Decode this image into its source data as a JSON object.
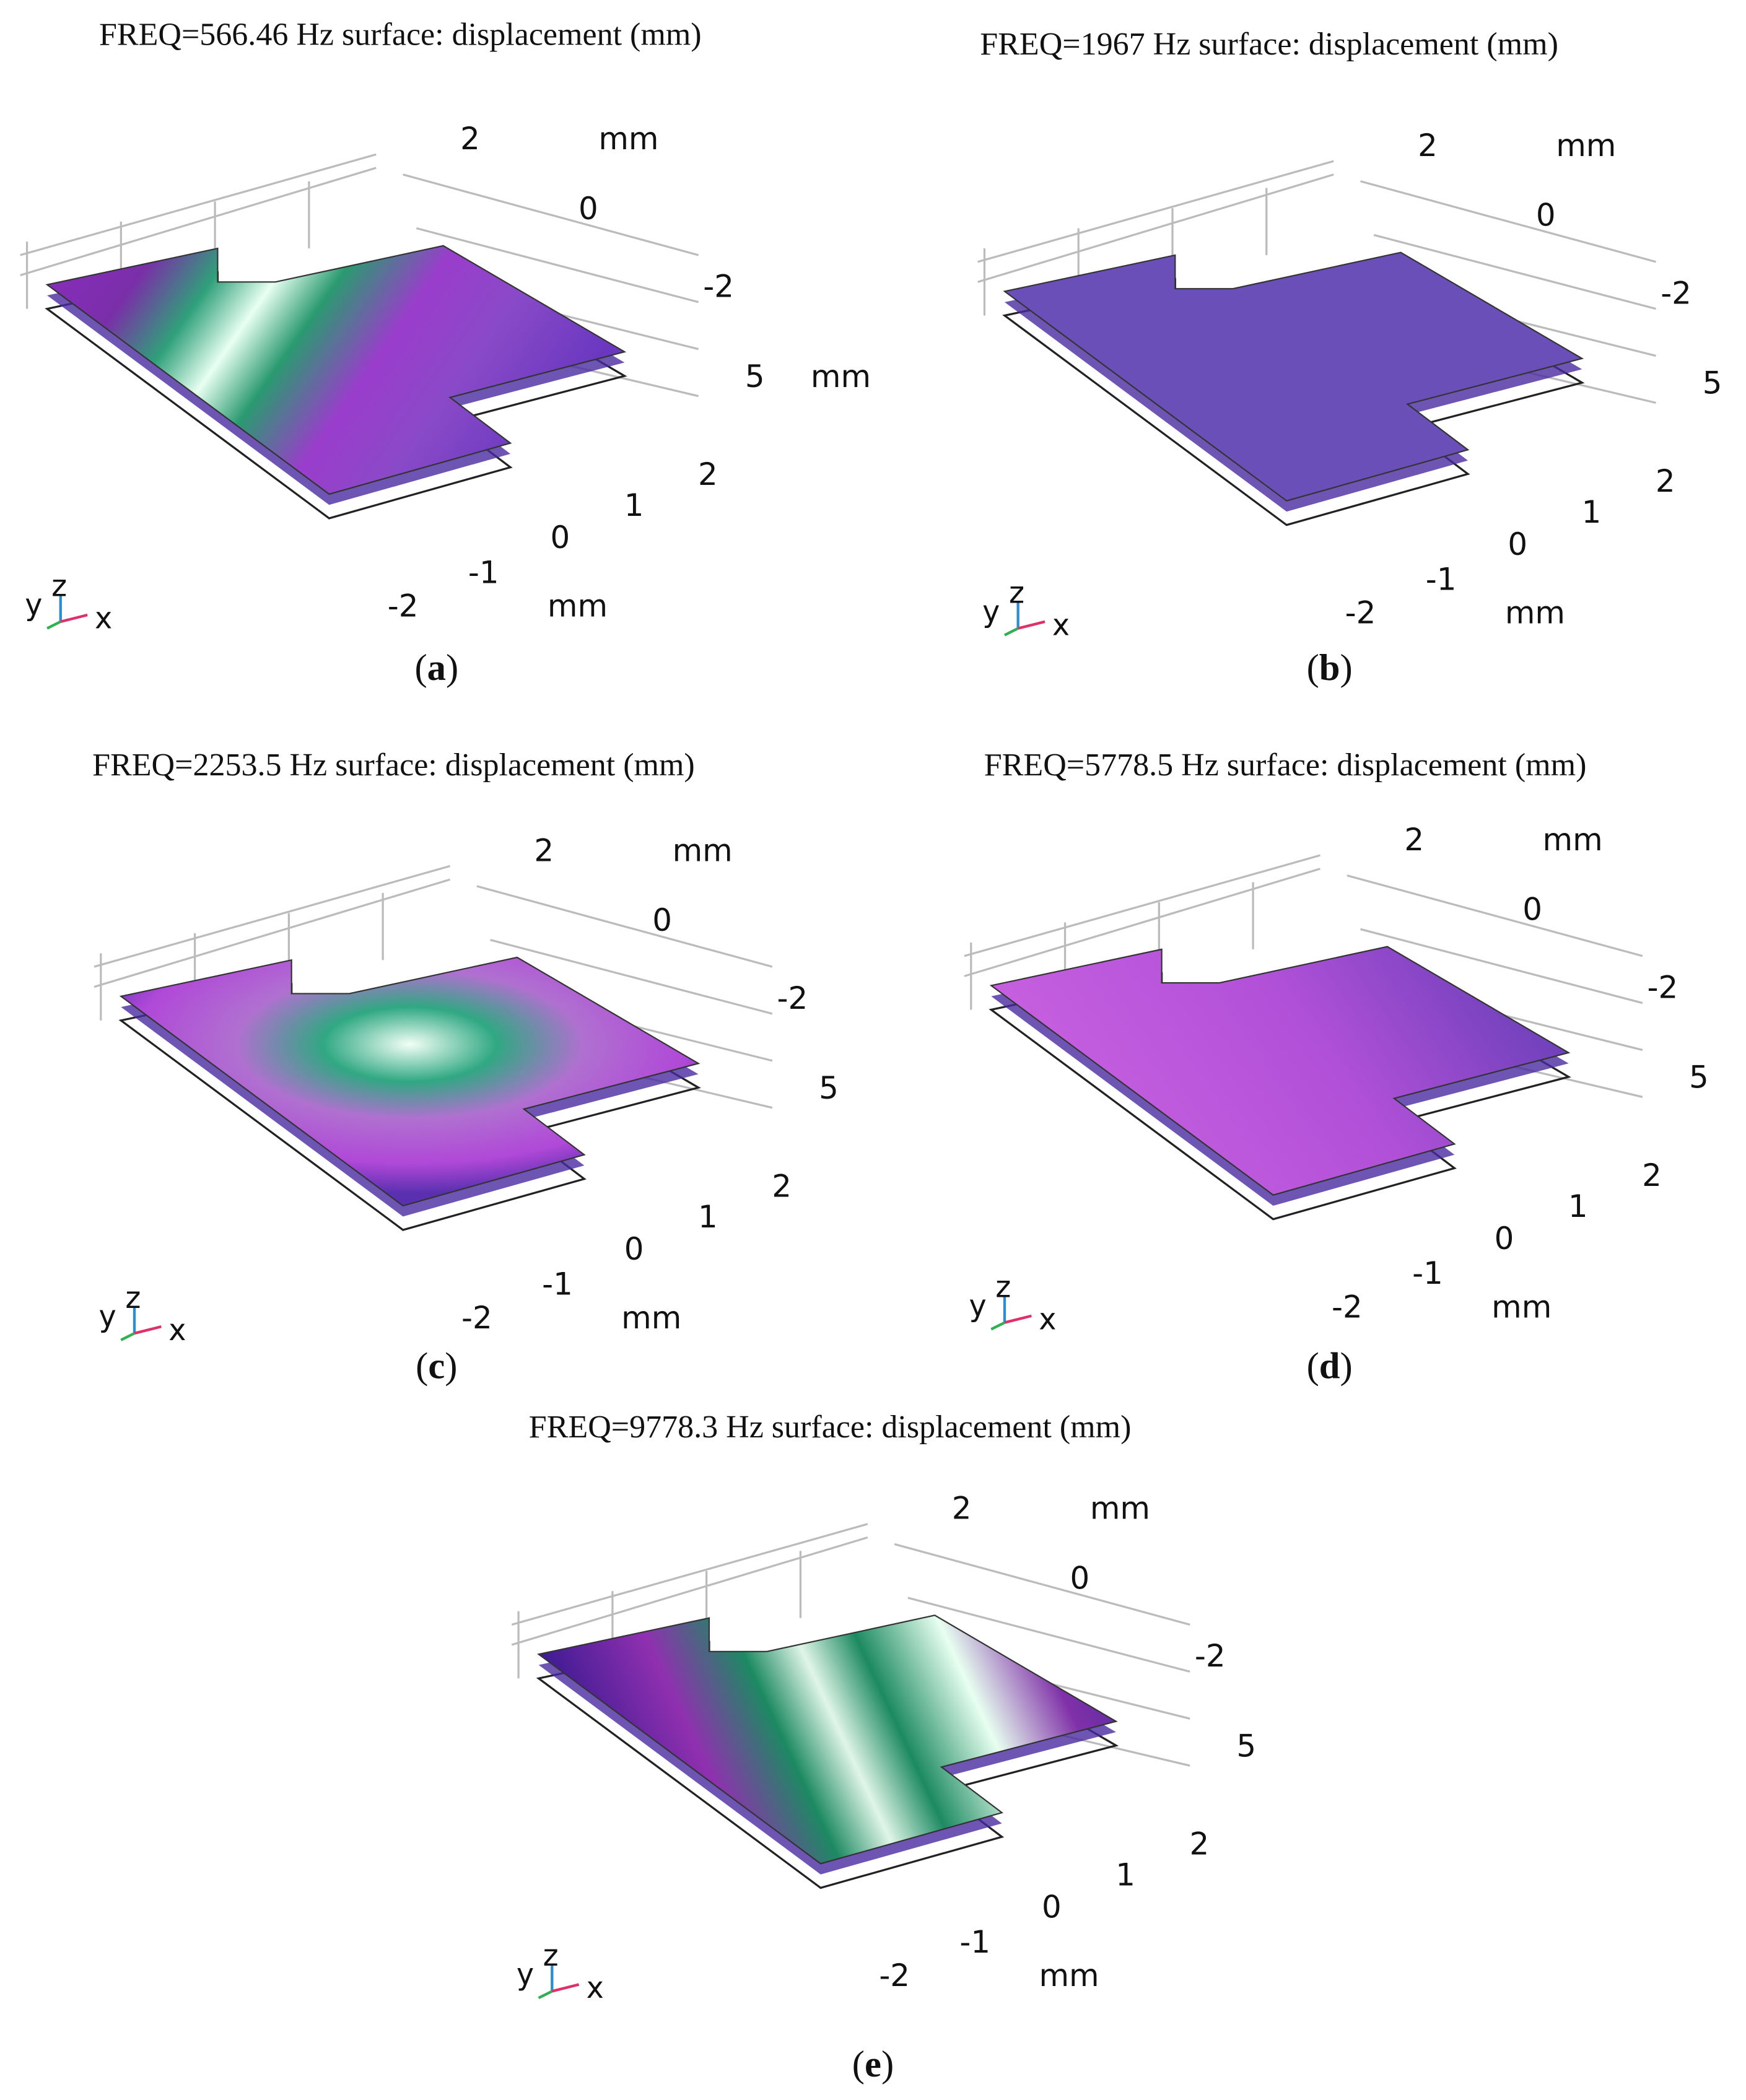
{
  "panels": [
    {
      "title": "FREQ=566.46 Hz surface: displacement (mm)",
      "labels": [
        "2",
        "mm",
        "0",
        "-2",
        "5",
        "mm",
        "2",
        "1",
        "0",
        "-1",
        "-2",
        "mm"
      ],
      "triad": [
        "y",
        "z",
        "x"
      ],
      "caption": [
        "(",
        "a",
        ")"
      ]
    },
    {
      "title": "FREQ=1967 Hz surface: displacement (mm)",
      "labels": [
        "2",
        "mm",
        "0",
        "-2",
        "5",
        "2",
        "1",
        "0",
        "-1",
        "-2",
        "mm"
      ],
      "triad": [
        "y",
        "z",
        "x"
      ],
      "caption": [
        "(",
        "b",
        ")"
      ]
    },
    {
      "title": "FREQ=2253.5 Hz surface: displacement (mm)",
      "labels": [
        "2",
        "mm",
        "0",
        "-2",
        "5",
        "2",
        "1",
        "0",
        "-1",
        "-2",
        "mm"
      ],
      "triad": [
        "y",
        "z",
        "x"
      ],
      "caption": [
        "(",
        "c",
        ")"
      ]
    },
    {
      "title": "FREQ=5778.5 Hz surface: displacement (mm)",
      "labels": [
        "2",
        "mm",
        "0",
        "-2",
        "5",
        "2",
        "1",
        "0",
        "-1",
        "-2",
        "mm"
      ],
      "triad": [
        "y",
        "z",
        "x"
      ],
      "caption": [
        "(",
        "d",
        ")"
      ]
    },
    {
      "title": "FREQ=9778.3 Hz surface: displacement (mm)",
      "labels": [
        "2",
        "mm",
        "0",
        "-2",
        "5",
        "2",
        "1",
        "0",
        "-1",
        "-2",
        "mm"
      ],
      "triad": [
        "y",
        "z",
        "x"
      ],
      "caption": [
        "(",
        "e",
        ")"
      ]
    }
  ]
}
